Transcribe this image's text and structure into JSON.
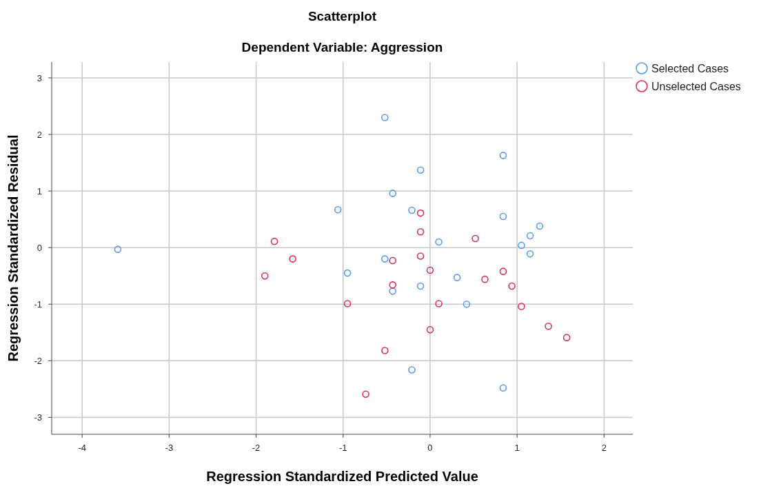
{
  "chart_data": {
    "type": "scatter",
    "title": "Scatterplot",
    "subtitle": "Dependent Variable: Aggression",
    "xlabel": "Regression Standardized Predicted Value",
    "ylabel": "Regression Standardized Residual",
    "xlim": [
      -4.35,
      2.33
    ],
    "ylim": [
      -3.3,
      3.28
    ],
    "xticks": [
      -4,
      -3,
      -2,
      -1,
      0,
      1,
      2
    ],
    "yticks": [
      -3,
      -2,
      -1,
      0,
      1,
      2,
      3
    ],
    "grid": true,
    "legend": "top right",
    "marker": "circle",
    "series": [
      {
        "name": "Selected Cases",
        "color": "#5b9bec",
        "x": [
          -3.59,
          -0.52,
          -0.11,
          0.84,
          -0.43,
          -1.06,
          -0.21,
          0.84,
          1.26,
          1.15,
          0.1,
          1.05,
          1.15,
          -0.52,
          -0.95,
          0.31,
          -0.11,
          -0.43,
          0.42,
          -0.21,
          0.84
        ],
        "values": [
          -0.03,
          2.3,
          1.37,
          1.63,
          0.96,
          0.67,
          0.66,
          0.55,
          0.38,
          0.21,
          0.1,
          0.04,
          -0.11,
          -0.2,
          -0.45,
          -0.53,
          -0.68,
          -0.77,
          -1.0,
          -2.16,
          -2.48
        ]
      },
      {
        "name": "Unselected Cases",
        "color": "#dc2f55",
        "x": [
          -1.79,
          -1.58,
          -1.9,
          -0.11,
          -0.11,
          0.52,
          -0.11,
          -0.43,
          0.0,
          -0.43,
          0.63,
          0.84,
          0.94,
          -0.95,
          0.1,
          1.05,
          0.0,
          1.36,
          1.57,
          -0.52,
          -0.74
        ],
        "values": [
          0.11,
          -0.2,
          -0.5,
          0.61,
          0.28,
          0.16,
          -0.15,
          -0.23,
          -0.4,
          -0.66,
          -0.56,
          -0.42,
          -0.68,
          -0.99,
          -0.99,
          -1.04,
          -1.45,
          -1.39,
          -1.59,
          -1.82,
          -2.59
        ]
      }
    ]
  }
}
